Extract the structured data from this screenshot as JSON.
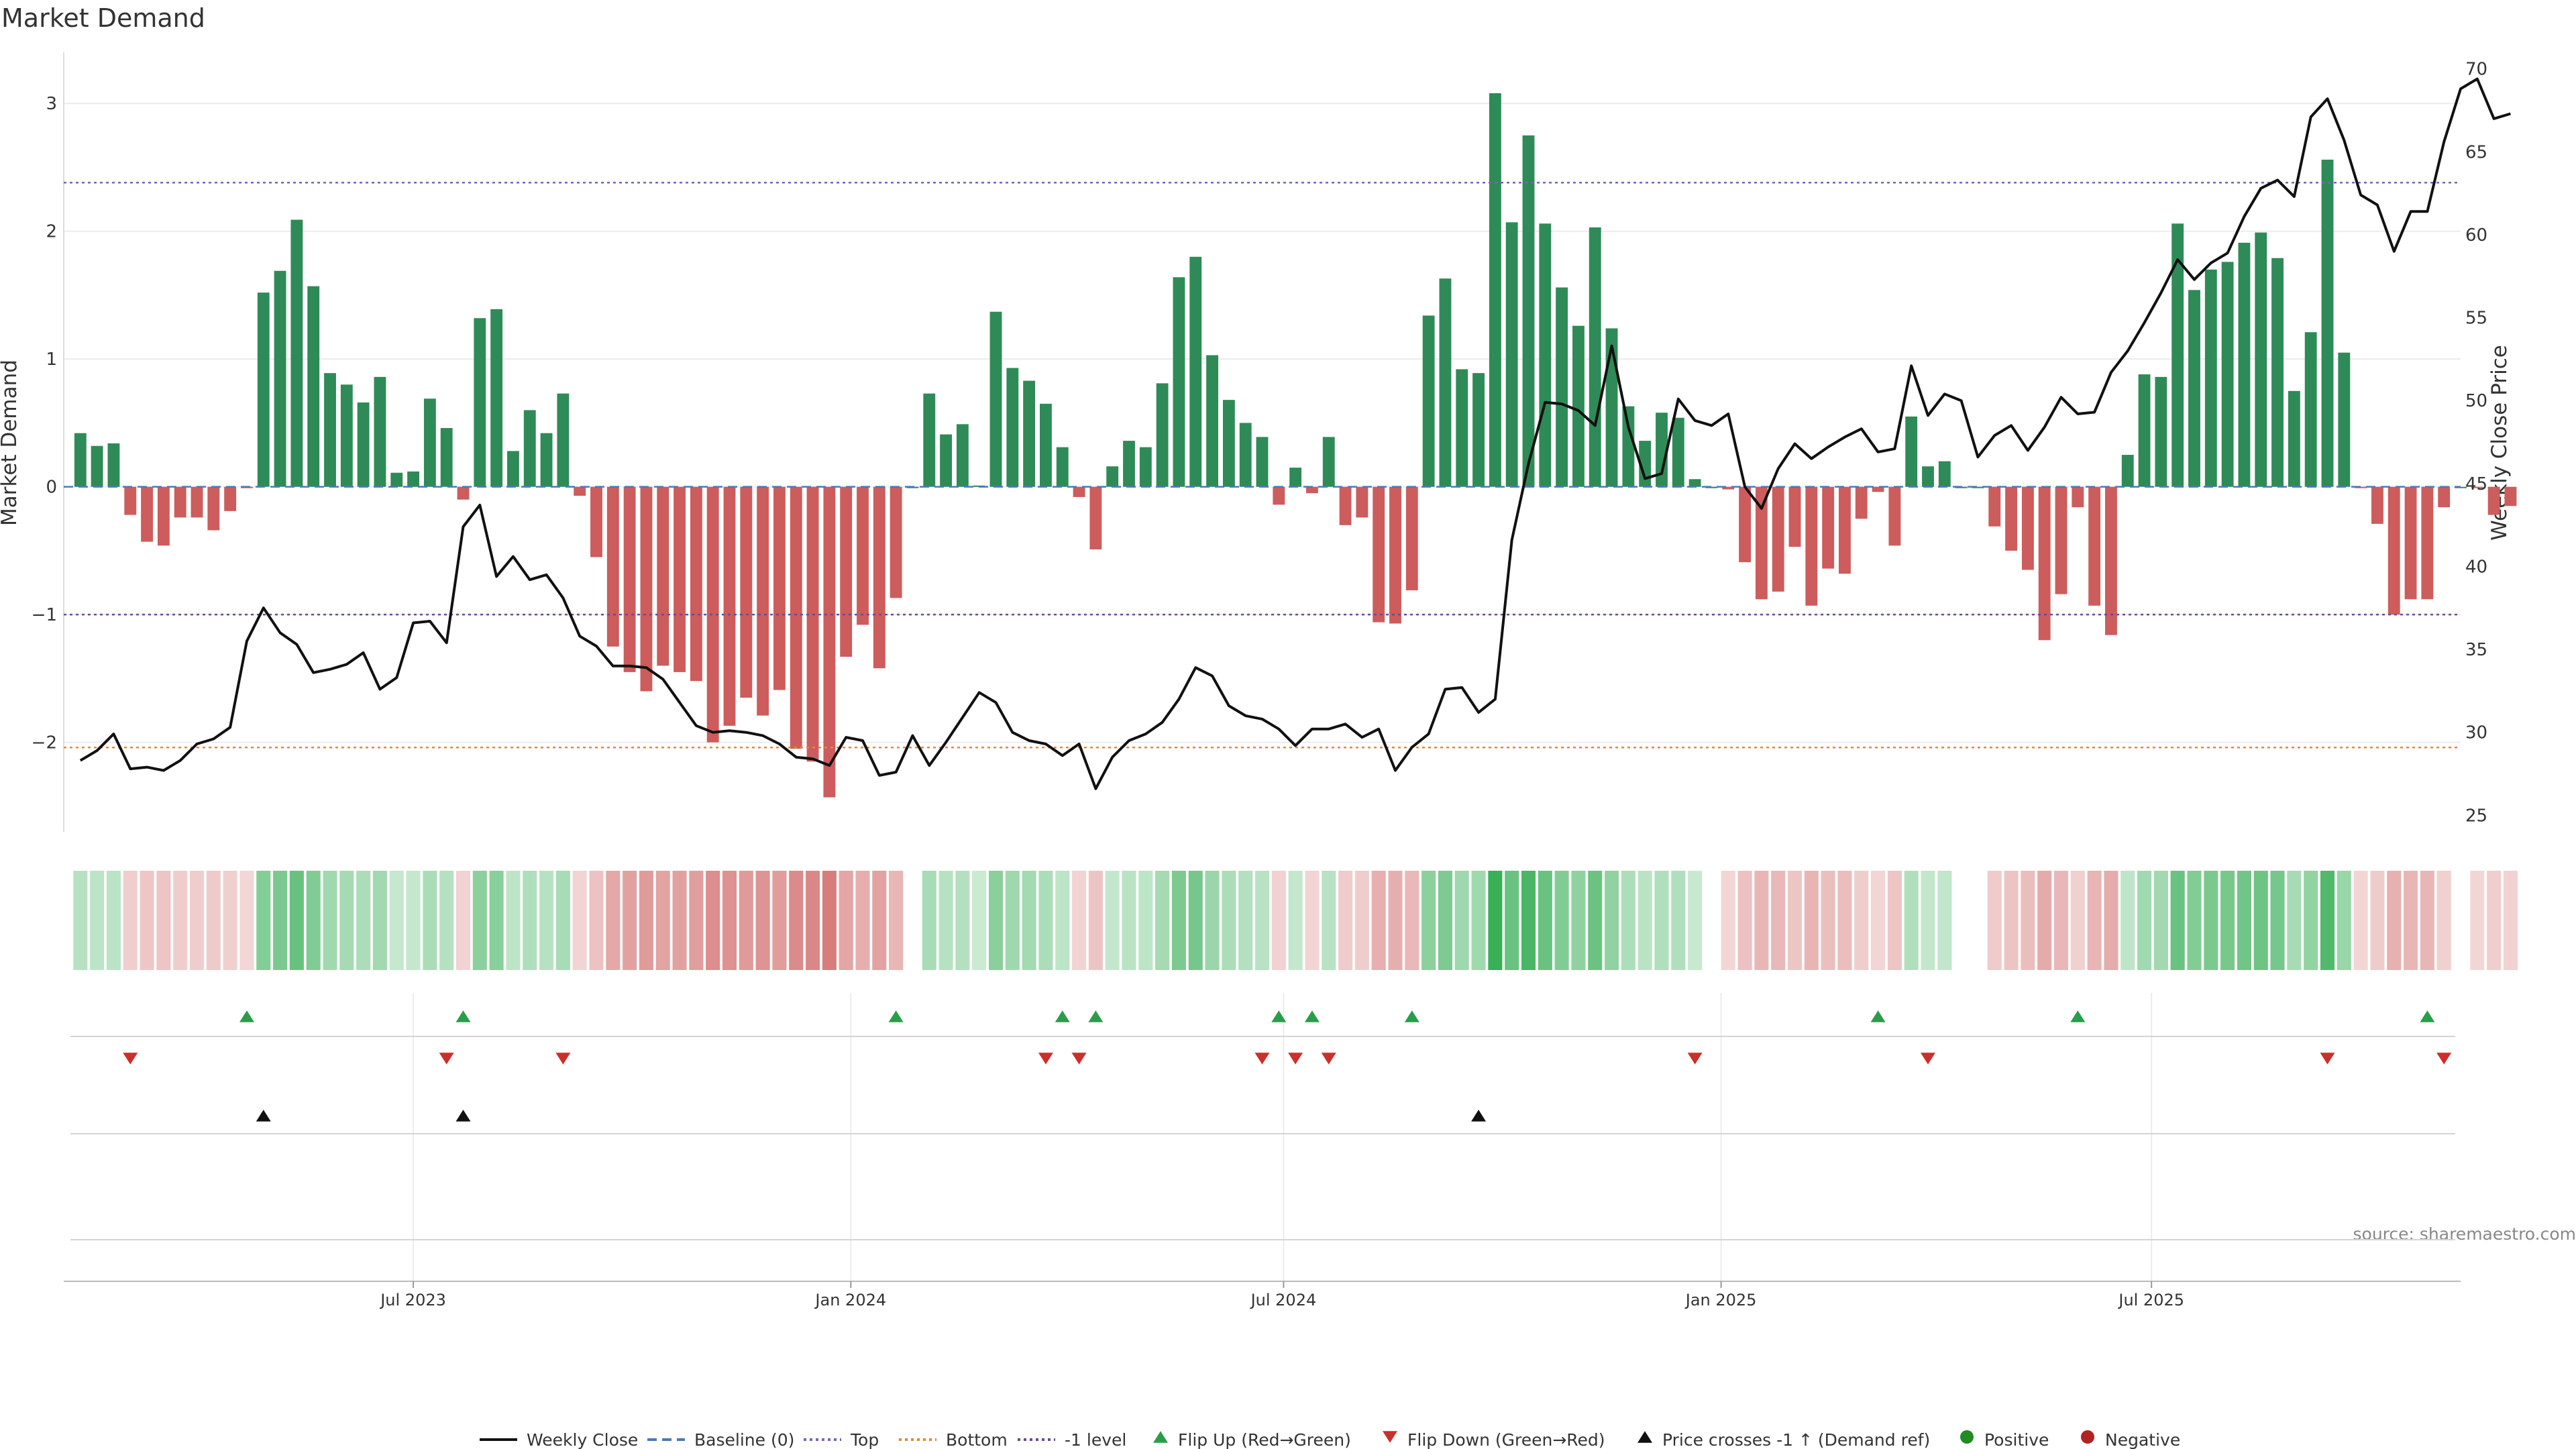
{
  "title": "Market Demand",
  "source": "source: sharemaestro.com",
  "colors": {
    "positive": "#2e8b57",
    "negative": "#cd5c5c",
    "price_line": "#111111",
    "baseline": "#4a7ab5",
    "top": "#7b63b5",
    "bottom": "#e08b2d",
    "minus1": "#6b4c8c",
    "flip_up": "#2a9d4a",
    "flip_down": "#c9302c",
    "cross": "#111111",
    "dot_positive": "#228b22",
    "dot_negative": "#b22222"
  },
  "chart_data": {
    "type": "bar",
    "title": "Market Demand",
    "left_axis": {
      "label": "Market Demand",
      "ticks": [
        3,
        2,
        1,
        0,
        -1,
        -2
      ],
      "range": [
        -2.7,
        3.4
      ]
    },
    "right_axis": {
      "label": "Weekly Close Price",
      "ticks": [
        70,
        65,
        60,
        55,
        50,
        45,
        40,
        35,
        30,
        25
      ],
      "range": [
        24,
        71
      ]
    },
    "x_range": [
      "2023-02-04",
      "2025-11-08"
    ],
    "date_ticks": [
      {
        "date": "2023-07-01",
        "label": "Jul 2023"
      },
      {
        "date": "2024-01-01",
        "label": "Jan 2024"
      },
      {
        "date": "2024-07-01",
        "label": "Jul 2024"
      },
      {
        "date": "2025-01-01",
        "label": "Jan 2025"
      },
      {
        "date": "2025-07-01",
        "label": "Jul 2025"
      }
    ],
    "reference_lines": {
      "baseline": 0,
      "top": 2.38,
      "bottom": -2.04,
      "minus1": -1.0
    },
    "start_date": "2023-02-11",
    "week_step_days": 7,
    "demand": [
      0.42,
      0.32,
      0.34,
      -0.22,
      -0.43,
      -0.46,
      -0.24,
      -0.24,
      -0.34,
      -0.19,
      -0.01,
      1.52,
      1.69,
      2.09,
      1.57,
      0.89,
      0.8,
      0.66,
      0.86,
      0.11,
      0.12,
      0.69,
      0.46,
      -0.1,
      1.32,
      1.39,
      0.28,
      0.6,
      0.42,
      0.73,
      -0.07,
      -0.55,
      -1.25,
      -1.45,
      -1.6,
      -1.4,
      -1.45,
      -1.52,
      -2.0,
      -1.87,
      -1.65,
      -1.79,
      -1.59,
      -2.05,
      -2.15,
      -2.43,
      -1.33,
      -1.08,
      -1.42,
      -0.87,
      0.0,
      0.73,
      0.41,
      0.49,
      0.01,
      1.37,
      0.93,
      0.83,
      0.65,
      0.31,
      -0.08,
      -0.49,
      0.16,
      0.36,
      0.31,
      0.81,
      1.64,
      1.8,
      1.03,
      0.68,
      0.5,
      0.39,
      -0.14,
      0.15,
      -0.05,
      0.39,
      -0.3,
      -0.24,
      -1.06,
      -1.07,
      -0.81,
      1.34,
      1.63,
      0.92,
      0.89,
      3.08,
      2.07,
      2.75,
      2.06,
      1.56,
      1.26,
      2.03,
      1.24,
      0.63,
      0.36,
      0.58,
      0.54,
      0.06,
      0.0,
      -0.02,
      -0.59,
      -0.88,
      -0.82,
      -0.47,
      -0.93,
      -0.64,
      -0.68,
      -0.25,
      -0.04,
      -0.46,
      0.55,
      0.16,
      0.2,
      0.0,
      0.0,
      -0.31,
      -0.5,
      -0.65,
      -1.2,
      -0.84,
      -0.16,
      -0.93,
      -1.16,
      0.25,
      0.88,
      0.86,
      2.06,
      1.54,
      1.7,
      1.76,
      1.91,
      1.99,
      1.79,
      0.75,
      1.21,
      2.56,
      1.05,
      -0.01,
      -0.29,
      -1.0,
      -0.88,
      -0.88,
      -0.16,
      0.0,
      -0.01,
      -0.22,
      -0.15
    ],
    "price": [
      28.3,
      28.9,
      29.9,
      27.8,
      27.9,
      27.7,
      28.3,
      29.3,
      29.6,
      30.3,
      35.5,
      37.5,
      36.0,
      35.3,
      33.6,
      33.8,
      34.1,
      34.8,
      32.6,
      33.3,
      36.6,
      36.7,
      35.4,
      42.4,
      43.7,
      39.4,
      40.6,
      39.2,
      39.5,
      38.1,
      35.8,
      35.2,
      34.0,
      34.0,
      33.9,
      33.2,
      31.8,
      30.4,
      30.0,
      30.1,
      30.0,
      29.8,
      29.3,
      28.5,
      28.4,
      28.0,
      29.7,
      29.5,
      27.4,
      27.6,
      29.8,
      28.0,
      29.4,
      30.9,
      32.4,
      31.8,
      30.0,
      29.5,
      29.3,
      28.6,
      29.3,
      26.6,
      28.5,
      29.5,
      29.9,
      30.6,
      32.0,
      33.9,
      33.4,
      31.6,
      31.0,
      30.8,
      30.2,
      29.2,
      30.2,
      30.2,
      30.5,
      29.7,
      30.2,
      27.7,
      29.1,
      29.9,
      32.6,
      32.7,
      31.2,
      32.0,
      41.6,
      46.2,
      49.9,
      49.8,
      49.4,
      48.5,
      53.3,
      48.4,
      45.3,
      45.6,
      50.1,
      48.8,
      48.5,
      49.2,
      44.8,
      43.5,
      45.9,
      47.4,
      46.5,
      47.2,
      47.8,
      48.3,
      46.9,
      47.1,
      52.1,
      49.1,
      50.4,
      50.0,
      46.6,
      47.9,
      48.5,
      47.0,
      48.4,
      50.2,
      49.2,
      49.3,
      51.7,
      53.0,
      54.7,
      56.5,
      58.5,
      57.3,
      58.3,
      58.9,
      61.1,
      62.8,
      63.3,
      62.3,
      67.1,
      68.2,
      65.7,
      62.4,
      61.8,
      59.0,
      61.4,
      61.4,
      65.6,
      68.8,
      69.4,
      67.0,
      67.3
    ],
    "flip_up_weeks": [
      10,
      23,
      49,
      59,
      61,
      72,
      74,
      80,
      108,
      120,
      141
    ],
    "flip_down_weeks": [
      3,
      22,
      29,
      58,
      60,
      71,
      73,
      75,
      97,
      111,
      135,
      142
    ],
    "price_cross_weeks": [
      11,
      23,
      84
    ],
    "series": [
      {
        "name": "Weekly Close"
      },
      {
        "name": "Baseline (0)"
      },
      {
        "name": "Top"
      },
      {
        "name": "Bottom"
      },
      {
        "name": "-1 level"
      },
      {
        "name": "Flip Up (Red→Green)"
      },
      {
        "name": "Flip Down (Green→Red)"
      },
      {
        "name": "Price crosses -1 ↑ (Demand ref)"
      },
      {
        "name": "Positive"
      },
      {
        "name": "Negative"
      }
    ]
  }
}
